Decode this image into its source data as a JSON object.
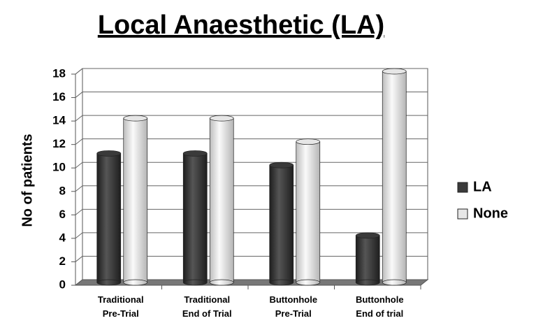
{
  "chart_data": {
    "type": "bar",
    "title": "Local Anaesthetic (LA)",
    "ylabel": "No of patients",
    "categories": [
      "Traditional\nPre-Trial",
      "Traditional\nEnd of Trial",
      "Buttonhole\nPre-Trial",
      "Buttonhole\nEnd of trial"
    ],
    "series": [
      {
        "name": "LA",
        "color": "#3a3a3a",
        "values": [
          11,
          11,
          10,
          4
        ]
      },
      {
        "name": "None",
        "color": "#e6e6e6",
        "values": [
          14,
          14,
          12,
          18
        ]
      }
    ],
    "ylim": [
      0,
      18
    ],
    "yticks": [
      0,
      2,
      4,
      6,
      8,
      10,
      12,
      14,
      16,
      18
    ],
    "grid": true,
    "legend": "right"
  }
}
